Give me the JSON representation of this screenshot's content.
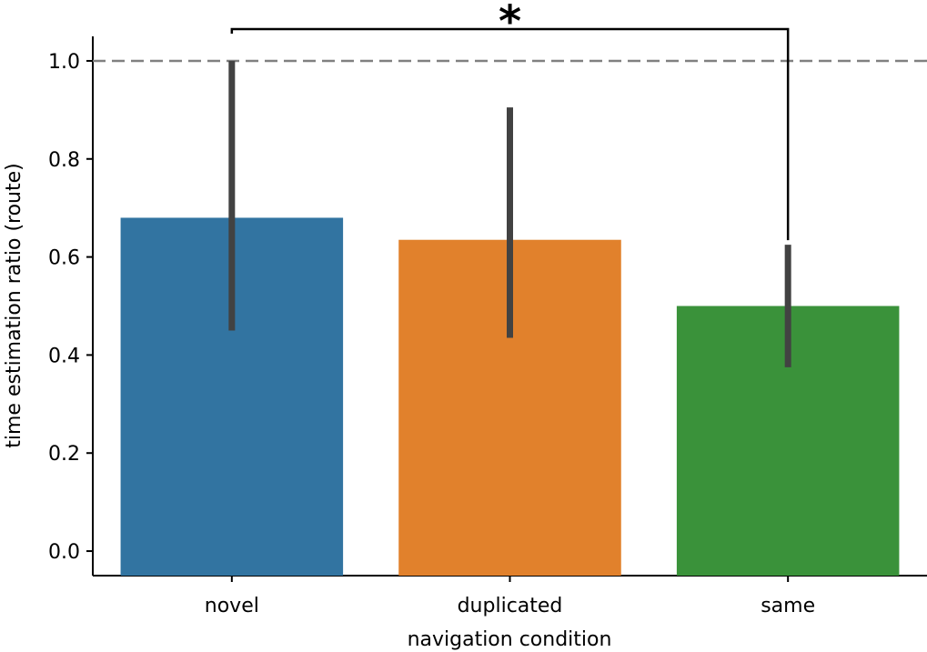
{
  "chart_data": {
    "type": "bar",
    "xlabel": "navigation condition",
    "ylabel": "time estimation ratio (route)",
    "categories": [
      "novel",
      "duplicated",
      "same"
    ],
    "values": [
      0.68,
      0.635,
      0.5
    ],
    "error_bars": [
      {
        "low": 0.45,
        "high": 1.0
      },
      {
        "low": 0.435,
        "high": 0.905
      },
      {
        "low": 0.375,
        "high": 0.625
      }
    ],
    "colors": [
      "#3274a1",
      "#e1812c",
      "#3a923a"
    ],
    "errorbar_color": "#424242",
    "ylim": [
      -0.05,
      1.05
    ],
    "yticks": [
      0.0,
      0.2,
      0.4,
      0.6,
      0.8,
      1.0
    ],
    "ytick_labels": [
      "0.0",
      "0.2",
      "0.4",
      "0.6",
      "0.8",
      "1.0"
    ],
    "reference_line": {
      "y": 1.0,
      "style": "dashed",
      "color": "#808080"
    },
    "significance": {
      "from": "novel",
      "to": "same",
      "label": "*"
    },
    "grid": false,
    "legend": "none"
  }
}
